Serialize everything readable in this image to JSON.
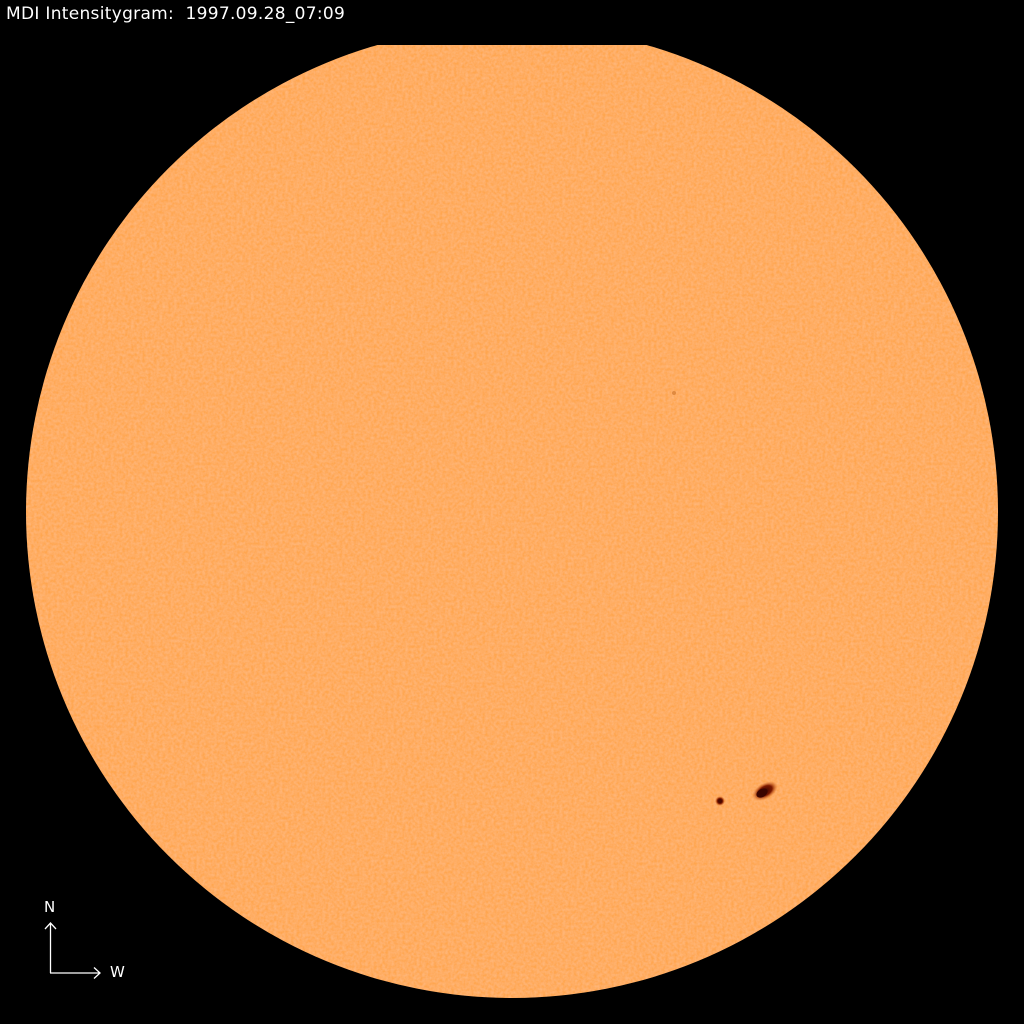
{
  "header": {
    "instrument": "MDI Intensitygram:",
    "timestamp": "1997.09.28_07:09"
  },
  "compass": {
    "north_label": "N",
    "west_label": "W"
  },
  "colors": {
    "background": "#000000",
    "photosphere": "#FFA64F",
    "sunspot_umbra": "#5A0A00",
    "sunspot_penumbra": "#D0500A",
    "text": "#FFFFFF"
  }
}
